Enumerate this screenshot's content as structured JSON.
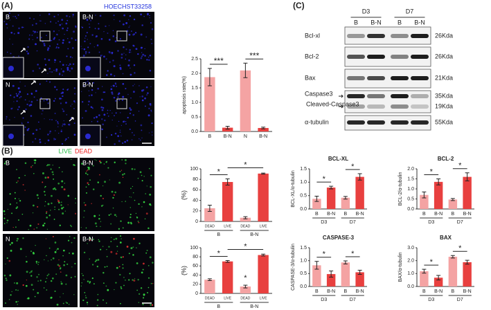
{
  "figure": {
    "panel_labels": [
      "(A)",
      "(B)",
      "(C)"
    ]
  },
  "panel_a": {
    "stain": "HOECHST33258",
    "image_labels": [
      "B",
      "B-N",
      "N",
      "B-N"
    ]
  },
  "panel_b": {
    "stains": [
      "LIVE",
      "DEAD"
    ],
    "image_labels": [
      "B",
      "B-N",
      "N",
      "B-N"
    ]
  },
  "blot": {
    "timepoints": [
      "D3",
      "D7"
    ],
    "lanes": [
      "B",
      "B-N",
      "B",
      "B-N"
    ],
    "bands": [
      {
        "label": "Bcl-xl",
        "size": "26Kda"
      },
      {
        "label": "Bcl-2",
        "size": "26Kda"
      },
      {
        "label": "Bax",
        "size": "21Kda"
      },
      {
        "label": "Caspase3",
        "size": "35Kda"
      },
      {
        "label": "Cleaved-Caspase3",
        "size": "19Kda"
      },
      {
        "label": "α-tubulin",
        "size": "55Kda"
      }
    ]
  },
  "chart_data": [
    {
      "type": "bar",
      "y_label": "apoptosis rate(%)",
      "categories": [
        "B",
        "B-N",
        "N",
        "B-N"
      ],
      "values": [
        1.87,
        0.13,
        2.1,
        0.12
      ],
      "errors": [
        0.3,
        0.05,
        0.25,
        0.03
      ],
      "colors": [
        "#f4a3a3",
        "#e8403f",
        "#f4a3a3",
        "#e8403f"
      ],
      "ylim": [
        0,
        2.5
      ],
      "yticks": [
        {
          "value": 0,
          "label": "0.0"
        },
        {
          "value": 0.5,
          "label": "0.5"
        },
        {
          "value": 1,
          "label": "1.0"
        },
        {
          "value": 1.5,
          "label": "1.5"
        },
        {
          "value": 2,
          "label": "2.0"
        },
        {
          "value": 2.5,
          "label": "2.5"
        }
      ],
      "significance": [
        "***",
        "***"
      ]
    },
    {
      "type": "bar",
      "y_label": "(%)",
      "categories": [
        "DEAD",
        "LIVE",
        "DEAD",
        "LIVE"
      ],
      "groups": [
        "B",
        "B-N"
      ],
      "values": [
        25,
        75,
        7,
        91
      ],
      "errors": [
        6,
        6,
        2,
        1
      ],
      "colors": [
        "#f4a3a3",
        "#e8403f",
        "#f4a3a3",
        "#e8403f"
      ],
      "ylim": [
        0,
        100
      ],
      "yticks": [
        0,
        20,
        40,
        60,
        80,
        100
      ],
      "significance": [
        "*",
        "*"
      ]
    },
    {
      "type": "bar",
      "y_label": "(%)",
      "categories": [
        "DEAD",
        "LIVE",
        "DEAD",
        "LIVE"
      ],
      "groups": [
        "B",
        "B-N"
      ],
      "values": [
        30,
        70,
        15,
        84
      ],
      "errors": [
        2,
        2,
        3,
        2
      ],
      "colors": [
        "#f4a3a3",
        "#e8403f",
        "#f4a3a3",
        "#e8403f"
      ],
      "ylim": [
        0,
        100
      ],
      "yticks": [
        0,
        20,
        40,
        60,
        80,
        100
      ],
      "significance": [
        "*",
        "*",
        "*"
      ]
    },
    {
      "type": "bar",
      "title": "BCL-XL",
      "y_label": "BCL-XL/α-tubulin",
      "categories": [
        "B",
        "B-N",
        "B",
        "B-N"
      ],
      "groups": [
        "D3",
        "D7"
      ],
      "values": [
        0.38,
        0.8,
        0.42,
        1.2
      ],
      "errors": [
        0.1,
        0.05,
        0.05,
        0.12
      ],
      "colors": [
        "#f4a3a3",
        "#e8403f",
        "#f4a3a3",
        "#e8403f"
      ],
      "ylim": [
        0,
        1.5
      ],
      "yticks": [
        {
          "value": 0,
          "label": "0.0"
        },
        {
          "value": 0.5,
          "label": "0.5"
        },
        {
          "value": 1,
          "label": "1.0"
        },
        {
          "value": 1.5,
          "label": "1.5"
        }
      ],
      "significance": [
        "*",
        "*"
      ]
    },
    {
      "type": "bar",
      "title": "BCL-2",
      "y_label": "BCL-2/α-tubulin",
      "categories": [
        "B",
        "B-N",
        "B",
        "B-N"
      ],
      "groups": [
        "D3",
        "D7"
      ],
      "values": [
        0.7,
        1.35,
        0.47,
        1.6
      ],
      "errors": [
        0.15,
        0.15,
        0.05,
        0.2
      ],
      "colors": [
        "#f4a3a3",
        "#e8403f",
        "#f4a3a3",
        "#e8403f"
      ],
      "ylim": [
        0,
        2
      ],
      "yticks": [
        {
          "value": 0,
          "label": "0.0"
        },
        {
          "value": 0.5,
          "label": "0.5"
        },
        {
          "value": 1,
          "label": "1.0"
        },
        {
          "value": 1.5,
          "label": "1.5"
        },
        {
          "value": 2,
          "label": "2.0"
        }
      ],
      "significance": [
        "*",
        "*"
      ]
    },
    {
      "type": "bar",
      "title": "CASPASE-3",
      "y_label": "CASPASE-3/α-tubulin",
      "categories": [
        "B",
        "B-N",
        "B",
        "B-N"
      ],
      "groups": [
        "D3",
        "D7"
      ],
      "values": [
        0.82,
        0.48,
        0.93,
        0.55
      ],
      "errors": [
        0.15,
        0.12,
        0.06,
        0.08
      ],
      "colors": [
        "#f4a3a3",
        "#e8403f",
        "#f4a3a3",
        "#e8403f"
      ],
      "ylim": [
        0,
        1.5
      ],
      "yticks": [
        {
          "value": 0,
          "label": "0.0"
        },
        {
          "value": 0.5,
          "label": "0.5"
        },
        {
          "value": 1,
          "label": "1.0"
        },
        {
          "value": 1.5,
          "label": "1.5"
        }
      ],
      "significance": [
        "*",
        "*"
      ]
    },
    {
      "type": "bar",
      "title": "BAX",
      "y_label": "BAX/α-tubulin",
      "categories": [
        "B",
        "B-N",
        "B",
        "B-N"
      ],
      "groups": [
        "D3",
        "D7"
      ],
      "values": [
        1.18,
        0.68,
        2.3,
        1.88
      ],
      "errors": [
        0.15,
        0.18,
        0.1,
        0.15
      ],
      "colors": [
        "#f4a3a3",
        "#e8403f",
        "#f4a3a3",
        "#e8403f"
      ],
      "ylim": [
        0,
        3
      ],
      "yticks": [
        {
          "value": 0,
          "label": "0.0"
        },
        {
          "value": 1,
          "label": "1.0"
        },
        {
          "value": 2,
          "label": "2.0"
        },
        {
          "value": 3,
          "label": "3.0"
        }
      ],
      "significance": [
        "*",
        "*"
      ]
    }
  ]
}
